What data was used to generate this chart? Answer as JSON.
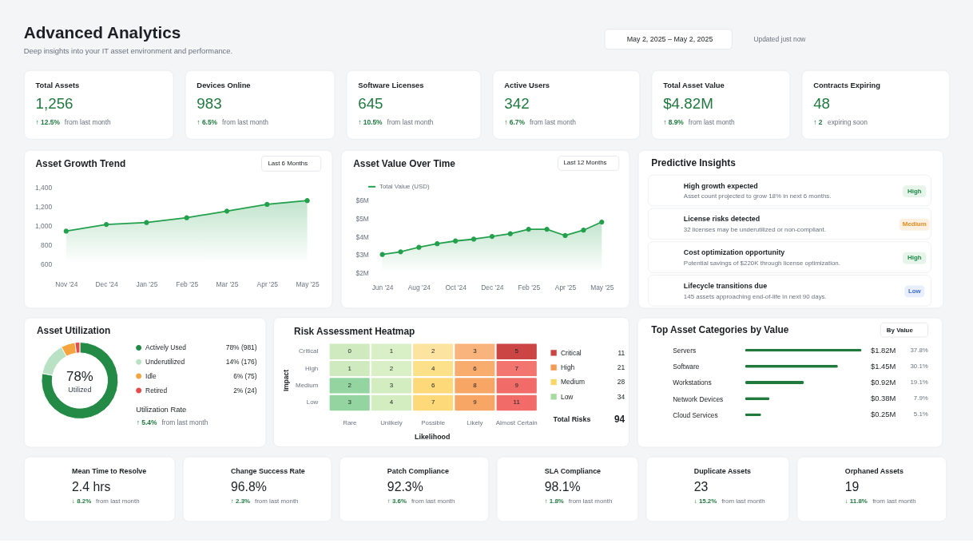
{
  "chart_data": [
    {
      "type": "other",
      "title": "Advanced Analytics",
      "subtitle": "Deep insights into your IT asset environment and performance.",
      "annotations": [
        "May 2, 2025 – May 2, 2025",
        "Updated just now"
      ]
    },
    {
      "type": "other",
      "title": "Total Assets",
      "annotations": [
        "1,256",
        "↑ 12.5%",
        "from last month"
      ]
    },
    {
      "type": "other",
      "title": "Devices Online",
      "annotations": [
        "983",
        "↑ 6.5%",
        "from last month"
      ]
    },
    {
      "type": "other",
      "title": "Software Licenses",
      "annotations": [
        "645",
        "↑ 10.5%",
        "from last month"
      ]
    },
    {
      "type": "other",
      "title": "Active Users",
      "annotations": [
        "342",
        "↑ 6.7%",
        "from last month"
      ]
    },
    {
      "type": "other",
      "title": "Total Asset Value",
      "annotations": [
        "$4.82M",
        "↑ 8.9%",
        "from last month"
      ]
    },
    {
      "type": "other",
      "title": "Contracts Expiring",
      "annotations": [
        "48",
        "↑ 2",
        "expiring soon"
      ]
    },
    {
      "type": "area",
      "title": "Asset Growth Trend",
      "categories": [
        "Nov '24",
        "Dec '24",
        "Jan '25",
        "Feb '25",
        "Mar '25",
        "Apr '25",
        "May '25"
      ],
      "values": [
        940,
        1010,
        1030,
        1080,
        1150,
        1220,
        1260
      ],
      "color": "#22a04b",
      "ylim": [
        600,
        1400
      ],
      "yticks": [
        600,
        800,
        {
          "value": 1000,
          "label": "1,000"
        },
        {
          "value": 1200,
          "label": "1,200"
        },
        {
          "value": 1400,
          "label": "1,400"
        }
      ],
      "marker": "circle",
      "annotations": [
        "Last 6 Months"
      ]
    },
    {
      "type": "area",
      "title": "Asset Value Over Time",
      "categories": [
        "Jun '24",
        null,
        "Aug '24",
        null,
        "Oct '24",
        null,
        "Dec '24",
        null,
        "Feb '25",
        null,
        "Apr '25",
        null,
        "May '25"
      ],
      "series": [
        {
          "name": "Total Value (USD)",
          "color": "#22a04b",
          "values": [
            3.0,
            3.15,
            3.4,
            3.6,
            3.75,
            3.85,
            4.0,
            4.15,
            4.4,
            4.4,
            4.05,
            4.35,
            4.8
          ]
        }
      ],
      "ylim": [
        2,
        6
      ],
      "yticks": [
        {
          "value": 2,
          "label": "$2M"
        },
        {
          "value": 3,
          "label": "$3M"
        },
        {
          "value": 4,
          "label": "$4M"
        },
        {
          "value": 5,
          "label": "$5M"
        },
        {
          "value": 6,
          "label": "$6M"
        }
      ],
      "legend": "top left",
      "marker": "circle",
      "annotations": [
        "Last 12 Months"
      ]
    },
    {
      "type": "other",
      "title": "Predictive Insights",
      "annotations": [
        "High growth expected",
        "Asset count projected to grow 18% in next 6 months.",
        "High",
        "License risks detected",
        "32 licenses may be underutilized or non-compliant.",
        "Medium",
        "Cost optimization opportunity",
        "Potential savings of $220K through license optimization.",
        "High",
        "Lifecycle transitions due",
        "145 assets approaching end-of-life in next 90 days.",
        "Low"
      ]
    },
    {
      "type": "donut",
      "title": "Asset Utilization",
      "categories": [
        "Actively Used",
        "Underutilized",
        "Idle",
        "Retired"
      ],
      "values": [
        78,
        14,
        6,
        2
      ],
      "colors": [
        "#238b45",
        "#b9e2c4",
        "#f5a33c",
        "#e84a4a"
      ],
      "value_labels": [
        "78% (981)",
        "14% (176)",
        "6% (75)",
        "2% (24)"
      ],
      "legend": "right",
      "annotations": [
        "78%",
        "Utilized",
        "Utilization Rate",
        "↑ 5.4%",
        "from last month"
      ]
    },
    {
      "type": "heatmap",
      "title": "Risk Assessment Heatmap",
      "categories": [
        "Rare",
        "Unlikely",
        "Possible",
        "Likely",
        "Almost Certain"
      ],
      "y_categories": [
        "Critical",
        "High",
        "Medium",
        "Low"
      ],
      "cells": [
        [
          0,
          1,
          2,
          3,
          5
        ],
        [
          1,
          2,
          4,
          6,
          7
        ],
        [
          2,
          3,
          6,
          8,
          9
        ],
        [
          3,
          4,
          7,
          9,
          11
        ]
      ],
      "colors": [
        [
          "#cfeabf",
          "#d9efc6",
          "#fde3a0",
          "#f8b47c",
          "#cc4545"
        ],
        [
          "#cfeabf",
          "#d9efc6",
          "#fde08a",
          "#f8ac6e",
          "#f2756f"
        ],
        [
          "#93d4a0",
          "#d4edc0",
          "#fdd97a",
          "#f8a666",
          "#f16c68"
        ],
        [
          "#93d4a0",
          "#d4edc0",
          "#fdd97a",
          "#f8a666",
          "#f16c68"
        ]
      ],
      "xlabel": "Likelihood",
      "ylabel": "Impact",
      "data_labels": true
    },
    {
      "type": "other",
      "categories": [
        "Critical",
        "High",
        "Medium",
        "Low"
      ],
      "values": [
        11,
        21,
        28,
        34
      ],
      "colors": [
        "#cc4545",
        "#f59a55",
        "#f7d866",
        "#a6dba0"
      ],
      "data_labels": true,
      "annotations": [
        "Total Risks",
        "94"
      ]
    },
    {
      "type": "bar",
      "orientation": "horizontal",
      "title": "Top Asset Categories by Value",
      "categories": [
        "Servers",
        "Software",
        "Workstations",
        "Network Devices",
        "Cloud Services"
      ],
      "values": [
        1.82,
        1.45,
        0.92,
        0.38,
        0.25
      ],
      "color": "#1f7a3c",
      "value_labels": [
        "$1.82M",
        "$1.45M",
        "$0.92M",
        "$0.38M",
        "$0.25M"
      ],
      "annotations": [
        "By Value",
        "37.8%",
        "30.1%",
        "19.1%",
        "7.9%",
        "5.1%"
      ]
    },
    {
      "type": "other",
      "title": "Mean Time to Resolve",
      "annotations": [
        "2.4 hrs",
        "↓ 8.2%",
        "from last month"
      ]
    },
    {
      "type": "other",
      "title": "Change Success Rate",
      "annotations": [
        "96.8%",
        "↑ 2.3%",
        "from last month"
      ]
    },
    {
      "type": "other",
      "title": "Patch Compliance",
      "annotations": [
        "92.3%",
        "↑ 3.6%",
        "from last month"
      ]
    },
    {
      "type": "other",
      "title": "SLA Compliance",
      "annotations": [
        "98.1%",
        "↑ 1.8%",
        "from last month"
      ]
    },
    {
      "type": "other",
      "title": "Duplicate Assets",
      "annotations": [
        "23",
        "↓ 15.2%",
        "from last month"
      ]
    },
    {
      "type": "other",
      "title": "Orphaned Assets",
      "annotations": [
        "19",
        "↓ 11.8%",
        "from last month"
      ]
    }
  ]
}
